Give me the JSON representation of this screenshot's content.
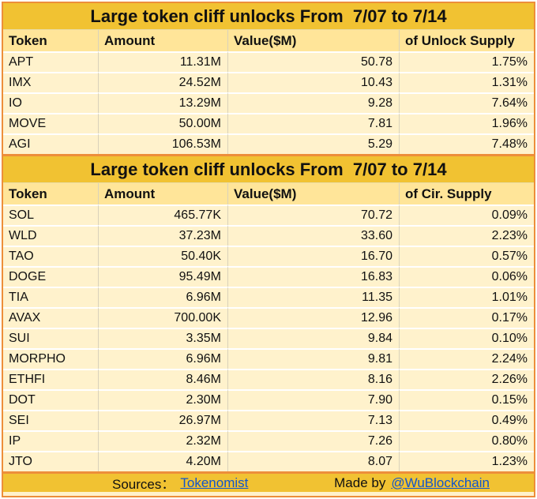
{
  "colors": {
    "gold": "#F1C232",
    "header_yellow": "#FFE599",
    "row_cream": "#FFF2CC",
    "border_orange": "#ED8E3A",
    "link_blue": "#1155CC"
  },
  "tables": [
    {
      "title": "Large token cliff unlocks From  7/07 to 7/14",
      "columns": [
        "Token",
        "Amount",
        "Value($M)",
        "of Unlock Supply"
      ],
      "rows": [
        [
          "APT",
          "11.31M",
          "50.78",
          "1.75%"
        ],
        [
          "IMX",
          "24.52M",
          "10.43",
          "1.31%"
        ],
        [
          "IO",
          "13.29M",
          "9.28",
          "7.64%"
        ],
        [
          "MOVE",
          "50.00M",
          "7.81",
          "1.96%"
        ],
        [
          "AGI",
          "106.53M",
          "5.29",
          "7.48%"
        ]
      ]
    },
    {
      "title": "Large token cliff unlocks From  7/07 to 7/14",
      "columns": [
        "Token",
        "Amount",
        "Value($M)",
        "of Cir. Supply"
      ],
      "rows": [
        [
          "SOL",
          "465.77K",
          "70.72",
          "0.09%"
        ],
        [
          "WLD",
          "37.23M",
          "33.60",
          "2.23%"
        ],
        [
          "TAO",
          "50.40K",
          "16.70",
          "0.57%"
        ],
        [
          "DOGE",
          "95.49M",
          "16.83",
          "0.06%"
        ],
        [
          "TIA",
          "6.96M",
          "11.35",
          "1.01%"
        ],
        [
          "AVAX",
          "700.00K",
          "12.96",
          "0.17%"
        ],
        [
          "SUI",
          "3.35M",
          "9.84",
          "0.10%"
        ],
        [
          "MORPHO",
          "6.96M",
          "9.81",
          "2.24%"
        ],
        [
          "ETHFI",
          "8.46M",
          "8.16",
          "2.26%"
        ],
        [
          "DOT",
          "2.30M",
          "7.90",
          "0.15%"
        ],
        [
          "SEI",
          "26.97M",
          "7.13",
          "0.49%"
        ],
        [
          "IP",
          "2.32M",
          "7.26",
          "0.80%"
        ],
        [
          "JTO",
          "4.20M",
          "8.07",
          "1.23%"
        ]
      ]
    }
  ],
  "footer": {
    "sources_label": "Sources：",
    "sources_link": "Tokenomist",
    "made_by_label": "Made by",
    "made_by_link": "@WuBlockchain"
  }
}
